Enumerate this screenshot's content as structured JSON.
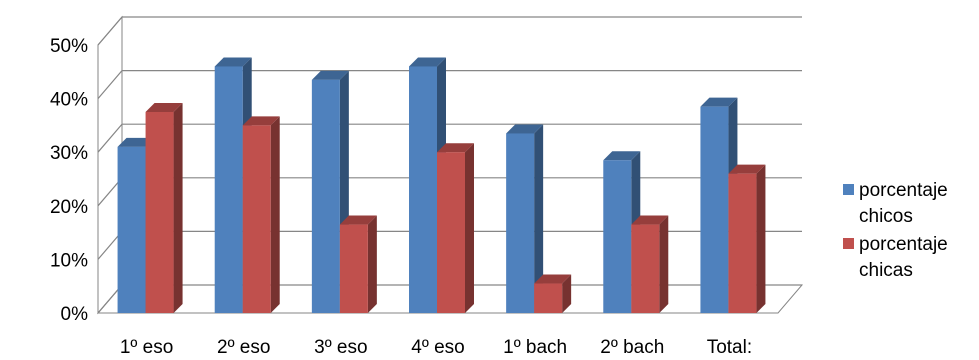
{
  "chart_data": {
    "type": "bar",
    "style": "3d-clustered-column",
    "categories": [
      "1º eso",
      "2º eso",
      "3º eso",
      "4º eso",
      "1º bach",
      "2º bach",
      "Total:"
    ],
    "series": [
      {
        "name": "porcentaje chicos",
        "legend_lines": [
          "porcentaje",
          "chicos"
        ],
        "color": "#4F81BD",
        "values": [
          0.31,
          0.46,
          0.435,
          0.46,
          0.335,
          0.285,
          0.385
        ]
      },
      {
        "name": "porcentaje chicas",
        "legend_lines": [
          "porcentaje",
          "chicas"
        ],
        "color": "#C0504D",
        "values": [
          0.375,
          0.35,
          0.165,
          0.3,
          0.055,
          0.165,
          0.26
        ]
      }
    ],
    "ylim": [
      0,
      0.5
    ],
    "yticks": [
      "0%",
      "10%",
      "20%",
      "30%",
      "40%",
      "50%"
    ],
    "grid": true,
    "legend": "right",
    "title": "",
    "xlabel": "",
    "ylabel": ""
  }
}
